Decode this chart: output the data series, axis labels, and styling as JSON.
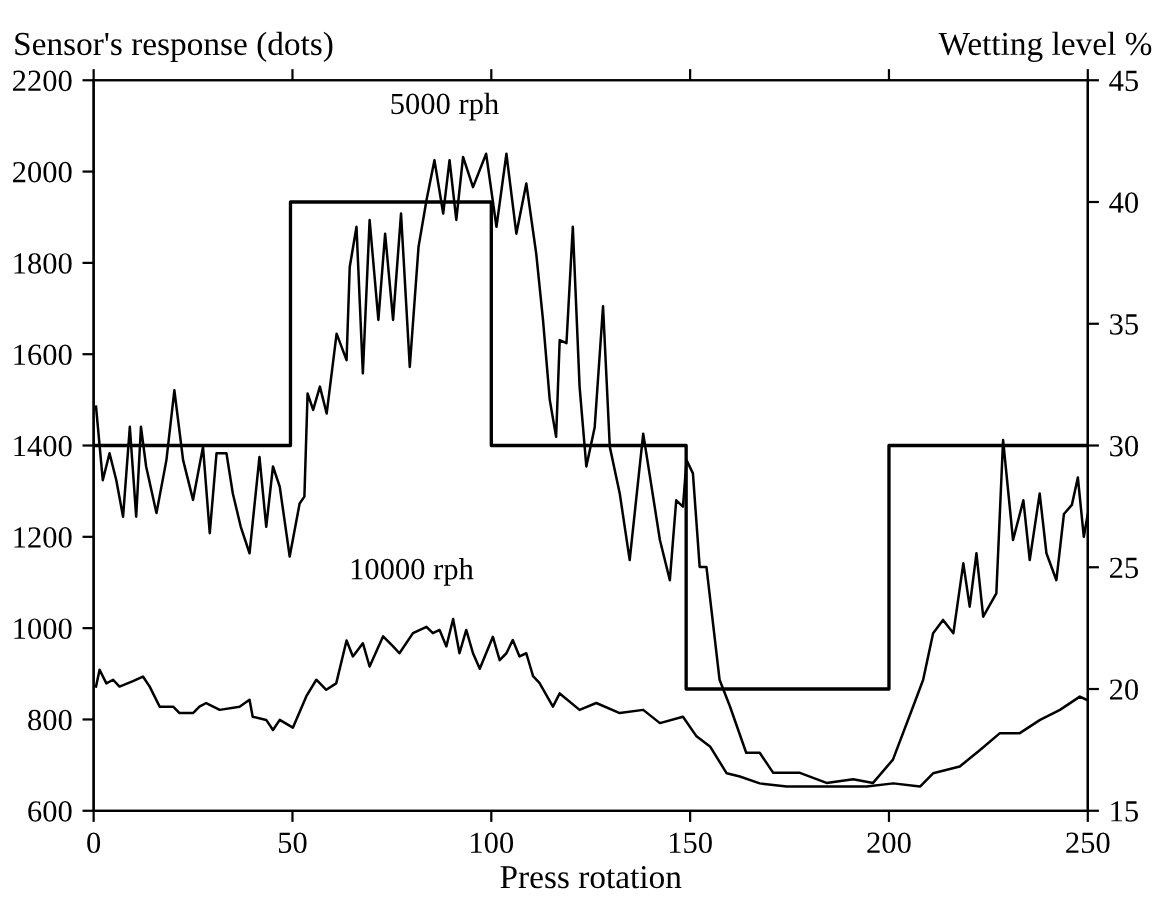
{
  "chart_data": {
    "type": "line",
    "xlabel": "Press rotation",
    "ylabel": "Sensor's response (dots)",
    "y2label": "Wetting level %",
    "xlim": [
      0,
      250
    ],
    "xticks": [
      0,
      50,
      100,
      150,
      200,
      250
    ],
    "ylim": [
      600,
      2200
    ],
    "yticks": [
      600,
      800,
      1000,
      1200,
      1400,
      1600,
      1800,
      2000,
      2200
    ],
    "y2lim": [
      15,
      45
    ],
    "y2ticks": [
      15,
      20,
      25,
      30,
      35,
      40,
      45
    ],
    "grid": false,
    "marker": "none",
    "line_style": "solid",
    "series": [
      {
        "name": "5000 rph",
        "color": "#000000",
        "x": [
          0.6,
          2.3,
          4.0,
          5.7,
          7.4,
          9.1,
          10.7,
          11.9,
          13.2,
          15.8,
          18.3,
          20.3,
          22.5,
          25,
          27.5,
          29.2,
          30.9,
          33.4,
          35,
          37,
          39.2,
          41.7,
          43.4,
          45.1,
          46.8,
          49.3,
          51.8,
          53,
          53.8,
          55.2,
          56.9,
          58.6,
          61.1,
          63.6,
          64.4,
          66.1,
          67.7,
          69.4,
          71.6,
          73.3,
          75.3,
          77.3,
          79.5,
          81.7,
          83.7,
          85.7,
          87.9,
          89.5,
          91.2,
          92.9,
          95.4,
          98.7,
          101.3,
          103.8,
          106.3,
          108.8,
          111.3,
          113,
          114.7,
          116.3,
          117.2,
          118.9,
          120.5,
          122.2,
          123.9,
          126,
          128.1,
          129.8,
          132.3,
          134.8,
          138.2,
          142.4,
          144.9,
          146.5,
          148.2,
          149.1,
          150.7,
          152.4,
          154.1,
          157.4,
          160,
          164.1,
          167.5,
          170.9,
          177.6,
          184.3,
          191,
          196,
          201,
          206.1,
          208.6,
          211.1,
          213.6,
          216.2,
          218.7,
          220.3,
          222,
          223.7,
          227,
          228.7,
          231.2,
          233.8,
          235.4,
          237.9,
          239.6,
          242.1,
          244,
          246,
          247.5,
          249,
          250
        ],
        "values": [
          1485,
          1324,
          1383,
          1324,
          1244,
          1441,
          1244,
          1441,
          1354,
          1252,
          1368,
          1521,
          1368,
          1281,
          1397,
          1208,
          1383,
          1383,
          1295,
          1222,
          1164,
          1375,
          1222,
          1354,
          1310,
          1157,
          1273,
          1288,
          1514,
          1478,
          1529,
          1470,
          1645,
          1587,
          1791,
          1879,
          1558,
          1894,
          1675,
          1864,
          1675,
          1908,
          1572,
          1835,
          1937,
          2025,
          1908,
          2025,
          1894,
          2032,
          1966,
          2039,
          1879,
          2039,
          1864,
          1974,
          1820,
          1675,
          1500,
          1419,
          1631,
          1624,
          1879,
          1529,
          1354,
          1440,
          1705,
          1397,
          1295,
          1149,
          1426,
          1193,
          1105,
          1280,
          1266,
          1368,
          1339,
          1134,
          1134,
          887,
          829,
          727,
          727,
          683,
          683,
          661,
          669,
          661,
          712,
          829,
          887,
          989,
          1018,
          989,
          1142,
          1047,
          1164,
          1025,
          1076,
          1412,
          1193,
          1280,
          1149,
          1295,
          1164,
          1105,
          1250,
          1270,
          1330,
          1200,
          1250
        ]
      },
      {
        "name": "10000 rph",
        "color": "#000000",
        "x": [
          0.6,
          1.5,
          3.2,
          4.9,
          6.5,
          9.9,
          12.4,
          14.1,
          16.6,
          20,
          21.6,
          25,
          26.6,
          28.3,
          31.7,
          36.7,
          39.2,
          40,
          43.4,
          45.1,
          46.8,
          50.1,
          53.5,
          56,
          58.5,
          61,
          63.6,
          65.2,
          67.7,
          69.4,
          72.8,
          75.3,
          76.9,
          80.3,
          83.7,
          85.3,
          87,
          88.7,
          90.4,
          92,
          93.7,
          95.4,
          97.1,
          100.4,
          102.1,
          103.8,
          105.4,
          107.1,
          108.8,
          110.5,
          112.1,
          115.5,
          117.2,
          122.2,
          126.4,
          132.3,
          138.2,
          142.4,
          148.2,
          151.6,
          155,
          159.2,
          162.5,
          167.5,
          174.3,
          184.3,
          194.4,
          201.1,
          207.8,
          211.1,
          217.8,
          222.9,
          227.9,
          232.9,
          238,
          243,
          248,
          249.7
        ],
        "values": [
          872,
          909,
          879,
          887,
          872,
          884,
          894,
          872,
          828,
          828,
          814,
          814,
          828,
          836,
          821,
          828,
          843,
          806,
          799,
          777,
          799,
          782,
          851,
          887,
          865,
          879,
          973,
          938,
          967,
          916,
          982,
          960,
          945,
          989,
          1003,
          989,
          996,
          960,
          1020,
          945,
          996,
          945,
          911,
          981,
          930,
          945,
          974,
          938,
          945,
          895,
          880,
          828,
          857,
          821,
          836,
          814,
          821,
          792,
          806,
          763,
          741,
          682,
          675,
          660,
          653,
          653,
          653,
          660,
          653,
          682,
          697,
          733,
          770,
          770,
          799,
          821,
          850,
          843
        ]
      },
      {
        "type": "step",
        "axis": "y2",
        "color": "#000000",
        "x": [
          0,
          49.5,
          100,
          149,
          200,
          250
        ],
        "values": [
          30,
          40,
          30,
          20,
          30,
          30
        ]
      }
    ]
  }
}
